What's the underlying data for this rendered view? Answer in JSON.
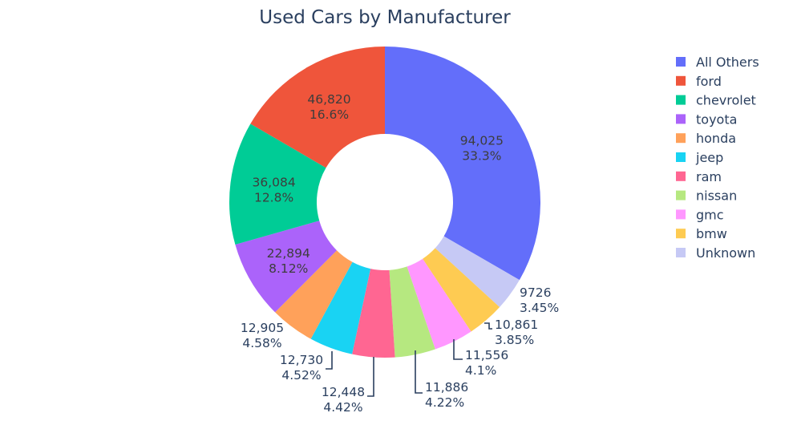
{
  "chart_data": {
    "type": "pie",
    "hole": true,
    "title": "Used Cars by Manufacturer",
    "slices": [
      {
        "label": "All Others",
        "value": 94025,
        "value_text": "94,025",
        "percent_text": "33.3%",
        "color": "#636efa",
        "text_position": "inside"
      },
      {
        "label": "Unknown",
        "value": 9726,
        "value_text": "9726",
        "percent_text": "3.45%",
        "color": "#c6c9f5",
        "text_position": "outside"
      },
      {
        "label": "bmw",
        "value": 10861,
        "value_text": "10,861",
        "percent_text": "3.85%",
        "color": "#fecb52",
        "text_position": "outside"
      },
      {
        "label": "gmc",
        "value": 11556,
        "value_text": "11,556",
        "percent_text": "4.1%",
        "color": "#ff97ff",
        "text_position": "outside"
      },
      {
        "label": "nissan",
        "value": 11886,
        "value_text": "11,886",
        "percent_text": "4.22%",
        "color": "#b6e880",
        "text_position": "outside"
      },
      {
        "label": "ram",
        "value": 12448,
        "value_text": "12,448",
        "percent_text": "4.42%",
        "color": "#ff6692",
        "text_position": "outside"
      },
      {
        "label": "jeep",
        "value": 12730,
        "value_text": "12,730",
        "percent_text": "4.52%",
        "color": "#19d3f3",
        "text_position": "outside"
      },
      {
        "label": "honda",
        "value": 12905,
        "value_text": "12,905",
        "percent_text": "4.58%",
        "color": "#ffa15a",
        "text_position": "outside"
      },
      {
        "label": "toyota",
        "value": 22894,
        "value_text": "22,894",
        "percent_text": "8.12%",
        "color": "#ab63fa",
        "text_position": "inside"
      },
      {
        "label": "chevrolet",
        "value": 36084,
        "value_text": "36,084",
        "percent_text": "12.8%",
        "color": "#00cc96",
        "text_position": "inside"
      },
      {
        "label": "ford",
        "value": 46820,
        "value_text": "46,820",
        "percent_text": "16.6%",
        "color": "#ef553b",
        "text_position": "inside"
      }
    ],
    "legend": {
      "placement": "top-right",
      "items": [
        {
          "label": "All Others",
          "color": "#636efa"
        },
        {
          "label": "ford",
          "color": "#ef553b"
        },
        {
          "label": "chevrolet",
          "color": "#00cc96"
        },
        {
          "label": "toyota",
          "color": "#ab63fa"
        },
        {
          "label": "honda",
          "color": "#ffa15a"
        },
        {
          "label": "jeep",
          "color": "#19d3f3"
        },
        {
          "label": "ram",
          "color": "#ff6692"
        },
        {
          "label": "nissan",
          "color": "#b6e880"
        },
        {
          "label": "gmc",
          "color": "#ff97ff"
        },
        {
          "label": "bmw",
          "color": "#fecb52"
        },
        {
          "label": "Unknown",
          "color": "#c6c9f5"
        }
      ]
    }
  }
}
